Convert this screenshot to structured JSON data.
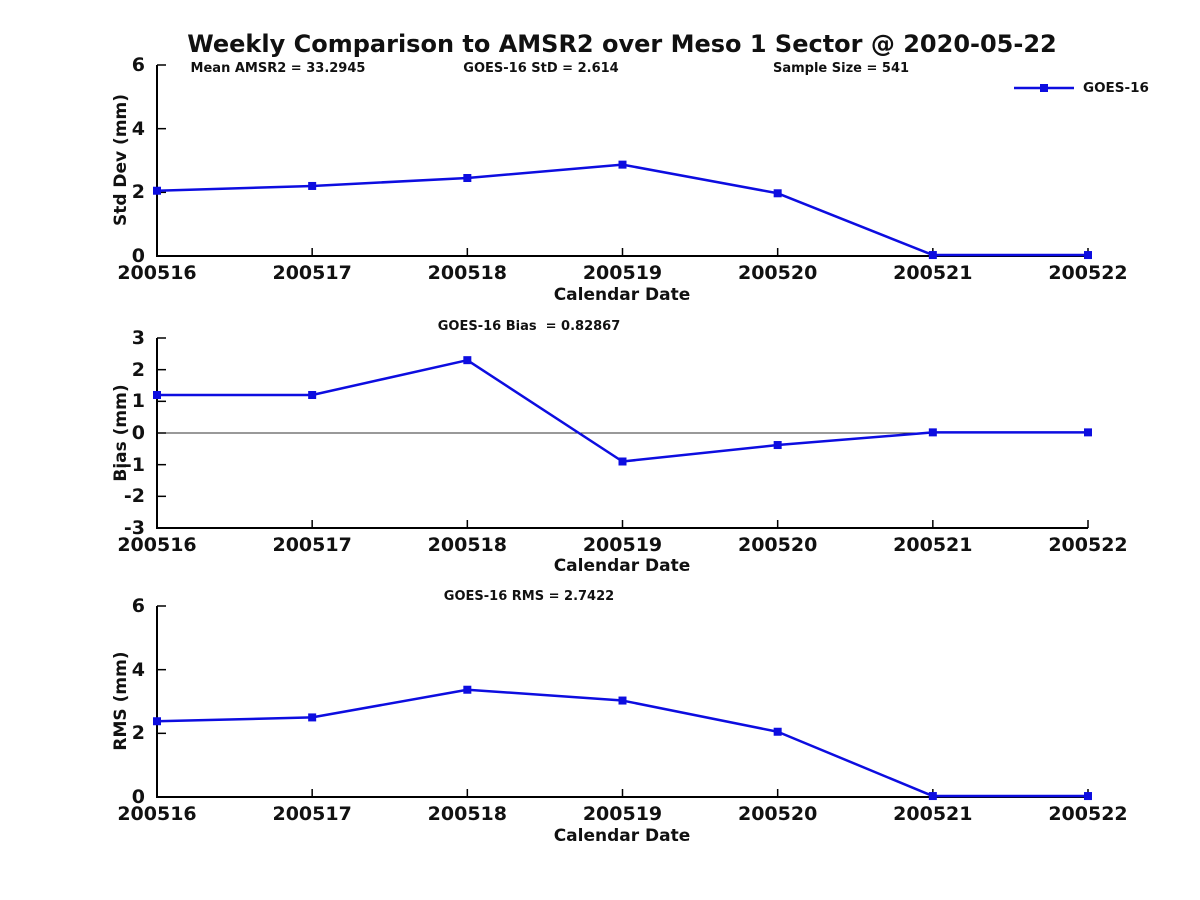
{
  "title": "Weekly Comparison to AMSR2 over Meso 1 Sector @ 2020-05-22",
  "annotations": {
    "mean_amsr2": "Mean AMSR2 = 33.2945",
    "goes16_std": "GOES-16 StD = 2.614",
    "sample_size": "Sample Size = 541"
  },
  "legend": {
    "label": "GOES-16",
    "position": "top-right-outside"
  },
  "colors": {
    "line": "#0d0de0",
    "axis": "#000000",
    "zero_line": "#333333",
    "text": "#111111",
    "background": "#ffffff"
  },
  "chart_data": [
    {
      "type": "line",
      "name": "std-dev",
      "title": "",
      "xlabel": "Calendar Date",
      "ylabel": "Std Dev (mm)",
      "x": [
        "200516",
        "200517",
        "200518",
        "200519",
        "200520",
        "200521",
        "200522"
      ],
      "series": [
        {
          "name": "GOES-16",
          "marker": "square",
          "values": [
            2.05,
            2.2,
            2.45,
            2.87,
            1.97,
            0.03,
            0.03
          ]
        }
      ],
      "ylim": [
        0,
        6
      ],
      "yticks": [
        0,
        2,
        4,
        6
      ],
      "grid": false,
      "zero_line": false
    },
    {
      "type": "line",
      "name": "bias",
      "title": "GOES-16 Bias  = 0.82867",
      "xlabel": "Calendar Date",
      "ylabel": "Bias (mm)",
      "x": [
        "200516",
        "200517",
        "200518",
        "200519",
        "200520",
        "200521",
        "200522"
      ],
      "series": [
        {
          "name": "GOES-16",
          "marker": "square",
          "values": [
            1.2,
            1.2,
            2.3,
            -0.9,
            -0.38,
            0.02,
            0.02
          ]
        }
      ],
      "ylim": [
        -3,
        3
      ],
      "yticks": [
        3,
        2,
        1,
        0,
        -1,
        -2,
        -3
      ],
      "grid": false,
      "zero_line": true
    },
    {
      "type": "line",
      "name": "rms",
      "title": "GOES-16 RMS = 2.7422",
      "xlabel": "Calendar Date",
      "ylabel": "RMS (mm)",
      "x": [
        "200516",
        "200517",
        "200518",
        "200519",
        "200520",
        "200521",
        "200522"
      ],
      "series": [
        {
          "name": "GOES-16",
          "marker": "square",
          "values": [
            2.38,
            2.5,
            3.37,
            3.03,
            2.05,
            0.03,
            0.03
          ]
        }
      ],
      "ylim": [
        0,
        6
      ],
      "yticks": [
        0,
        2,
        4,
        6
      ],
      "grid": false,
      "zero_line": false
    }
  ]
}
